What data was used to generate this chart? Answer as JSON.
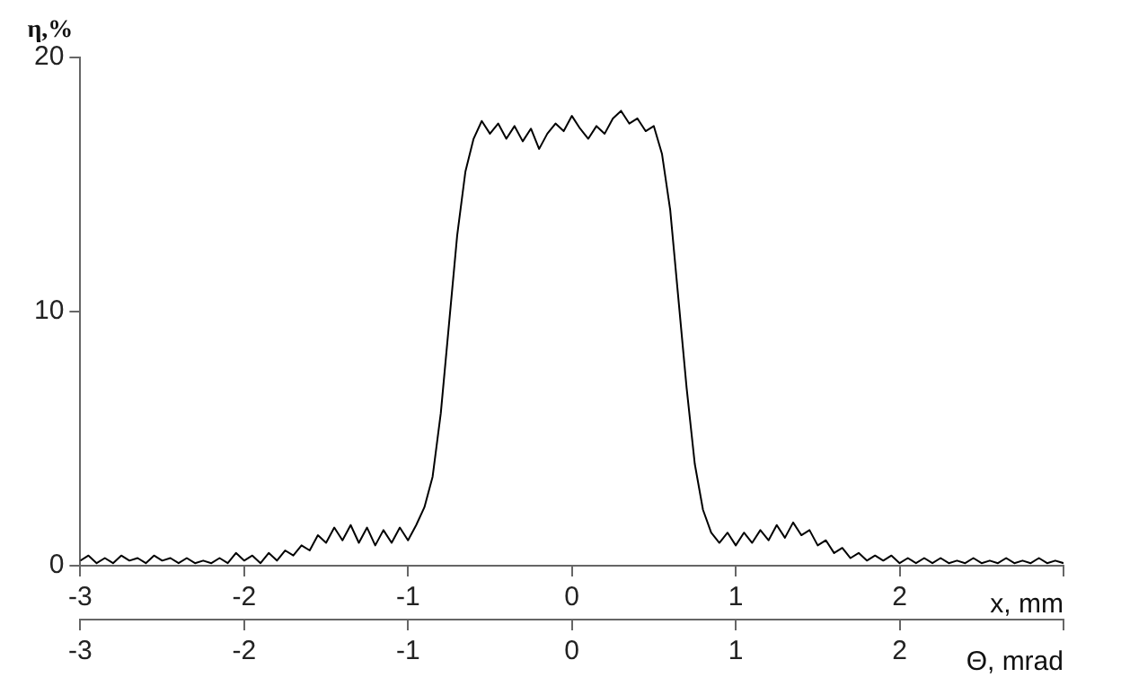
{
  "chart_data": {
    "type": "line",
    "ylabel": "η,%",
    "xlabel": "x, mm",
    "x2label": "Θ, mrad",
    "color": "#000000",
    "marker": "none",
    "xlim": [
      -3,
      3
    ],
    "xticks": [
      -3,
      -2,
      -1,
      0,
      1,
      2,
      {
        "value": 3,
        "label": null
      }
    ],
    "x2lim": [
      -3,
      3
    ],
    "x2ticks": [
      -3,
      -2,
      -1,
      0,
      1,
      2,
      {
        "value": 3,
        "label": null
      }
    ],
    "ylim": [
      0,
      20
    ],
    "yticks": [
      0,
      10,
      20
    ],
    "x": [
      -3,
      -2.95,
      -2.9,
      -2.85,
      -2.8,
      -2.75,
      -2.7,
      -2.65,
      -2.6,
      -2.55,
      -2.5,
      -2.45,
      -2.4,
      -2.35,
      -2.3,
      -2.25,
      -2.2,
      -2.15,
      -2.1,
      -2.05,
      -2,
      -1.95,
      -1.9,
      -1.85,
      -1.8,
      -1.75,
      -1.7,
      -1.65,
      -1.6,
      -1.55,
      -1.5,
      -1.45,
      -1.4,
      -1.35,
      -1.3,
      -1.25,
      -1.2,
      -1.15,
      -1.1,
      -1.05,
      -1,
      -0.95,
      -0.9,
      -0.85,
      -0.8,
      -0.75,
      -0.7,
      -0.65,
      -0.6,
      -0.55,
      -0.5,
      -0.45,
      -0.4,
      -0.35,
      -0.3,
      -0.25,
      -0.2,
      -0.15,
      -0.1,
      -0.05,
      0,
      0.05,
      0.1,
      0.15,
      0.2,
      0.25,
      0.3,
      0.35,
      0.4,
      0.45,
      0.5,
      0.55,
      0.6,
      0.65,
      0.7,
      0.75,
      0.8,
      0.85,
      0.9,
      0.95,
      1,
      1.05,
      1.1,
      1.15,
      1.2,
      1.25,
      1.3,
      1.35,
      1.4,
      1.45,
      1.5,
      1.55,
      1.6,
      1.65,
      1.7,
      1.75,
      1.8,
      1.85,
      1.9,
      1.95,
      2,
      2.05,
      2.1,
      2.15,
      2.2,
      2.25,
      2.3,
      2.35,
      2.4,
      2.45,
      2.5,
      2.55,
      2.6,
      2.65,
      2.7,
      2.75,
      2.8,
      2.85,
      2.9,
      2.95,
      3
    ],
    "values": [
      0.2,
      0.4,
      0.1,
      0.3,
      0.1,
      0.4,
      0.2,
      0.3,
      0.1,
      0.4,
      0.2,
      0.3,
      0.1,
      0.3,
      0.1,
      0.2,
      0.1,
      0.3,
      0.1,
      0.5,
      0.2,
      0.4,
      0.1,
      0.5,
      0.2,
      0.6,
      0.4,
      0.8,
      0.6,
      1.2,
      0.9,
      1.5,
      1,
      1.6,
      0.9,
      1.5,
      0.8,
      1.4,
      0.9,
      1.5,
      1,
      1.6,
      2.3,
      3.5,
      6,
      9.5,
      13,
      15.5,
      16.8,
      17.5,
      17,
      17.4,
      16.8,
      17.3,
      16.7,
      17.2,
      16.4,
      17,
      17.4,
      17.1,
      17.7,
      17.2,
      16.8,
      17.3,
      17,
      17.6,
      17.9,
      17.4,
      17.6,
      17.1,
      17.3,
      16.2,
      14,
      10.5,
      7,
      4,
      2.2,
      1.3,
      0.9,
      1.3,
      0.8,
      1.3,
      0.9,
      1.4,
      1,
      1.6,
      1.1,
      1.7,
      1.2,
      1.4,
      0.8,
      1,
      0.5,
      0.7,
      0.3,
      0.5,
      0.2,
      0.4,
      0.2,
      0.4,
      0.1,
      0.3,
      0.1,
      0.3,
      0.1,
      0.3,
      0.1,
      0.2,
      0.1,
      0.3,
      0.1,
      0.2,
      0.1,
      0.3,
      0.1,
      0.2,
      0.1,
      0.3,
      0.1,
      0.2,
      0.1
    ]
  }
}
